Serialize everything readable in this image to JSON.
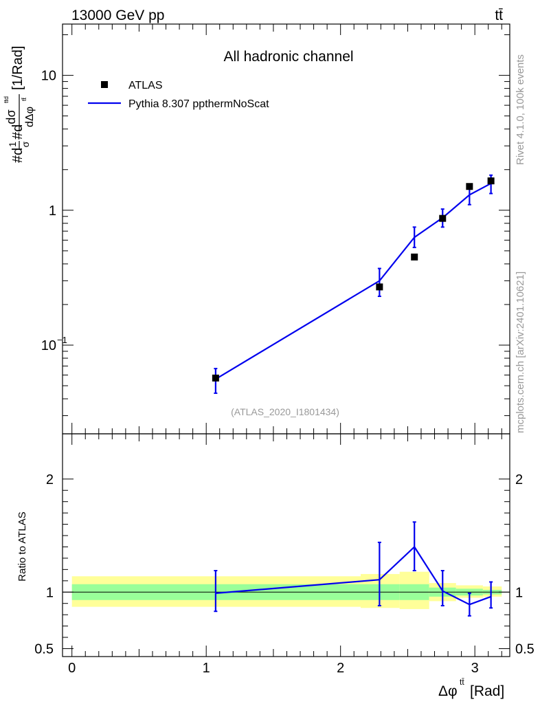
{
  "header": {
    "energy_label": "13000 GeV pp",
    "process_label": "tt̄"
  },
  "side_labels": {
    "rivet": "Rivet 4.1.0,  100k events",
    "mcplots": "mcplots.cern.ch [arXiv:2401.10621]"
  },
  "colors": {
    "mc_line": "#0000ee",
    "data_marker": "#000000",
    "band_inner": "#99ff99",
    "band_outer": "#ffff99",
    "watermark": "#999999"
  },
  "chart_data": [
    {
      "type": "scatter",
      "panel": "main",
      "title": "All hadronic channel",
      "analysis_tag": "(ATLAS_2020_I1801434)",
      "ylabel_parts": [
        "#d",
        "1",
        "σ",
        "#d",
        "dσ",
        "ttd",
        "dΔφ",
        "tt̄",
        "[1/Rad]"
      ],
      "yscale": "log",
      "ylim": [
        0.022,
        24
      ],
      "xlim": [
        -0.07,
        3.26
      ],
      "y_ticks": [
        {
          "value": 0.1,
          "base": "10",
          "exp": "−1"
        },
        {
          "value": 1,
          "base": "1",
          "exp": ""
        },
        {
          "value": 10,
          "base": "10",
          "exp": ""
        }
      ],
      "legend": [
        {
          "name": "ATLAS",
          "kind": "marker"
        },
        {
          "name": "Pythia 8.307 ppthermNoScat",
          "kind": "line"
        }
      ],
      "series": [
        {
          "name": "ATLAS",
          "x": [
            1.07,
            2.29,
            2.55,
            2.76,
            2.96,
            3.12
          ],
          "y": [
            0.057,
            0.27,
            0.45,
            0.87,
            1.5,
            1.65
          ]
        },
        {
          "name": "Pythia 8.307 ppthermNoScat",
          "x": [
            1.07,
            2.29,
            2.55,
            2.76,
            2.96,
            3.12
          ],
          "y": [
            0.056,
            0.3,
            0.63,
            0.88,
            1.3,
            1.58
          ],
          "err_low": [
            0.044,
            0.23,
            0.53,
            0.75,
            1.1,
            1.33
          ],
          "err_high": [
            0.067,
            0.37,
            0.75,
            1.02,
            1.5,
            1.82
          ]
        }
      ]
    },
    {
      "type": "line",
      "panel": "ratio",
      "ylabel": "Ratio to ATLAS",
      "xlabel_parts": [
        "Δφ",
        "tt̄",
        "[Rad]"
      ],
      "ylim": [
        0.43,
        2.4
      ],
      "xlim": [
        -0.07,
        3.26
      ],
      "y_ticks": [
        0.5,
        1,
        2
      ],
      "x_ticks": [
        0,
        1,
        2,
        3
      ],
      "reference": 1,
      "bands": {
        "edges": [
          0.0,
          2.15,
          2.44,
          2.66,
          2.86,
          3.06,
          3.2
        ],
        "outer_lo": [
          0.87,
          0.86,
          0.85,
          0.92,
          0.95,
          0.96
        ],
        "outer_hi": [
          1.14,
          1.16,
          1.18,
          1.08,
          1.06,
          1.05
        ],
        "inner_lo": [
          0.93,
          0.93,
          0.93,
          0.96,
          0.97,
          0.98
        ],
        "inner_hi": [
          1.07,
          1.07,
          1.07,
          1.04,
          1.03,
          1.02
        ]
      },
      "series": [
        {
          "name": "Pythia 8.307 ppthermNoScat / ATLAS",
          "x": [
            1.07,
            2.29,
            2.55,
            2.76,
            2.96,
            3.12
          ],
          "y": [
            0.99,
            1.11,
            1.4,
            1.01,
            0.89,
            0.96
          ],
          "err_low": [
            0.83,
            0.88,
            1.19,
            0.88,
            0.79,
            0.86
          ],
          "err_high": [
            1.19,
            1.44,
            1.62,
            1.19,
            0.99,
            1.09
          ]
        }
      ]
    }
  ]
}
